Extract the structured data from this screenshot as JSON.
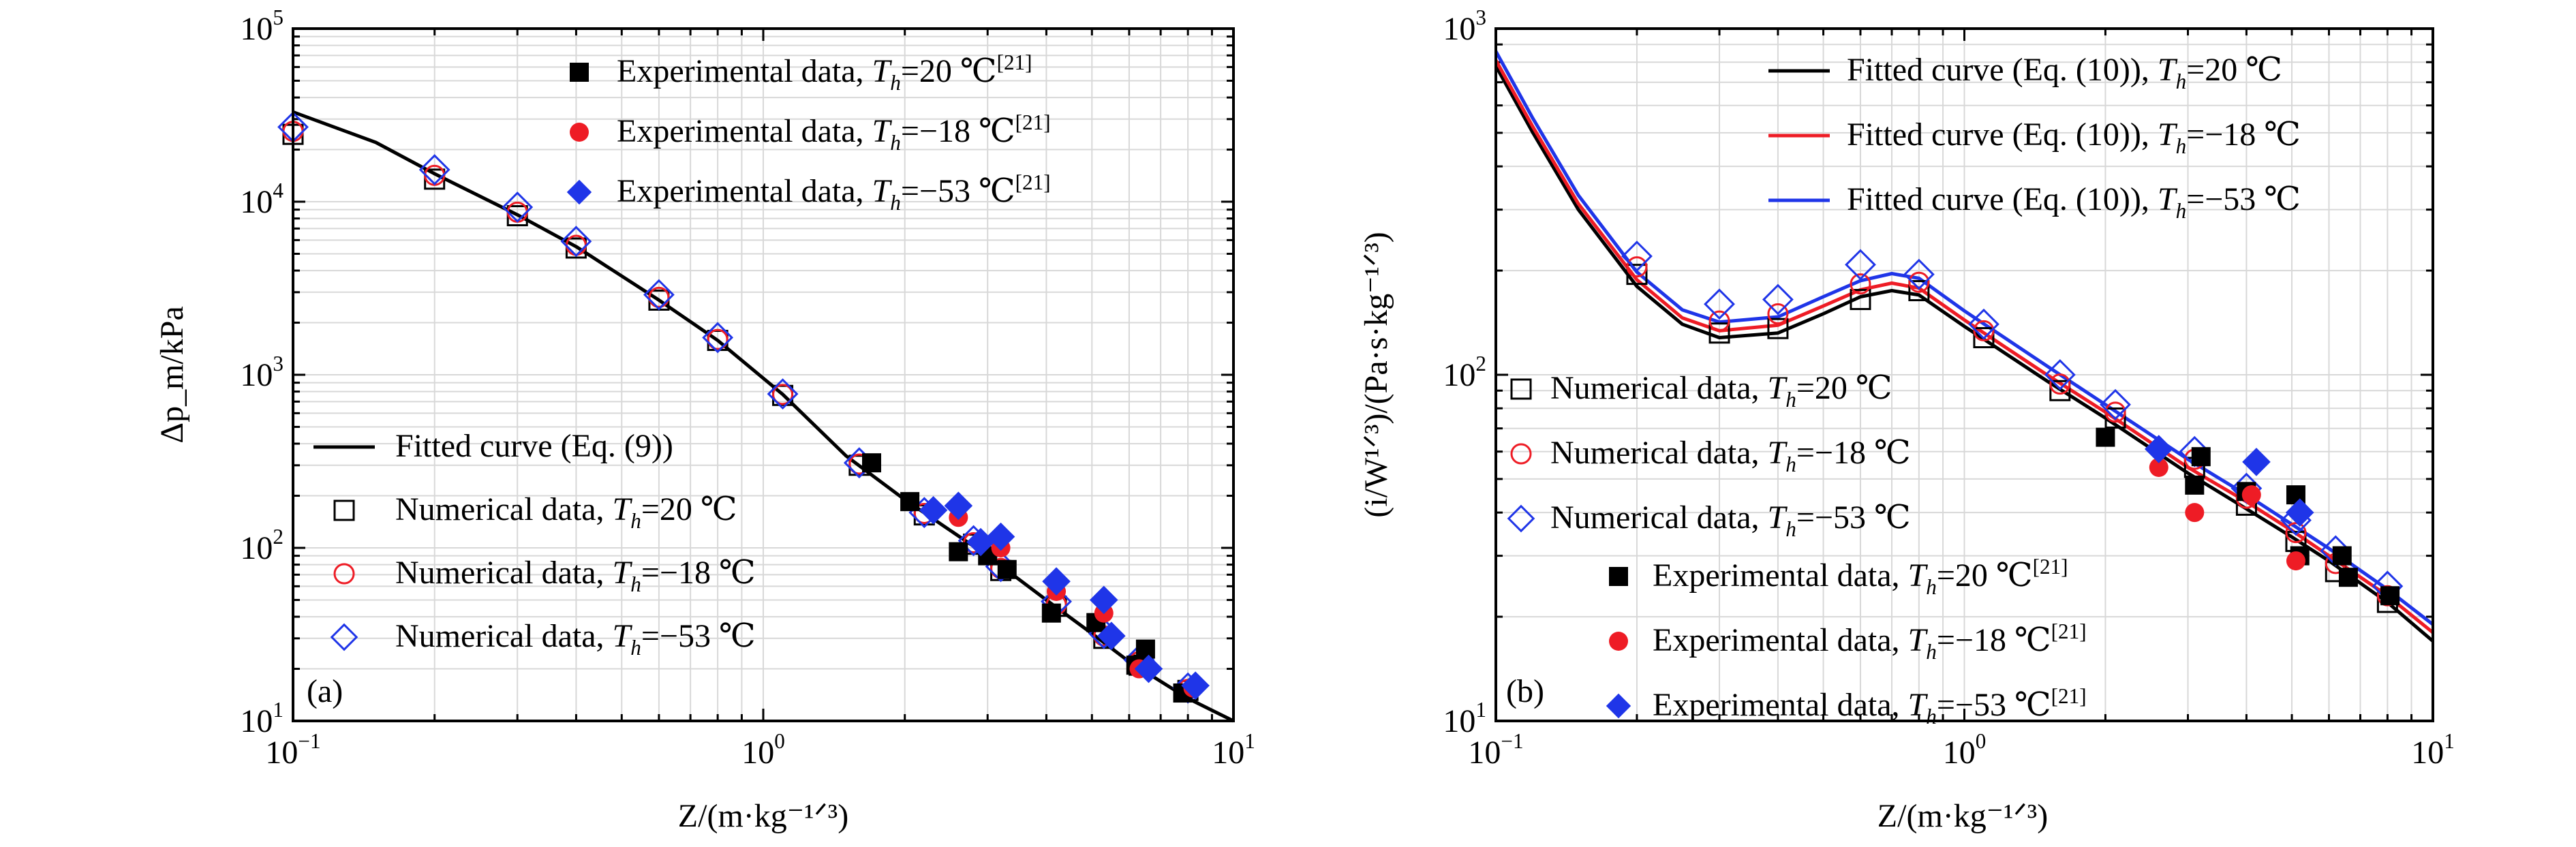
{
  "chart_data": [
    {
      "type": "scatter",
      "panel_label": "(a)",
      "xlabel": "Z/(m·kg⁻¹ᐟ³)",
      "ylabel": "Δp_m/kPa",
      "x_scale": "log",
      "y_scale": "log",
      "xlim": [
        0.1,
        10
      ],
      "ylim": [
        10,
        100000
      ],
      "x_ticks": [
        {
          "value": 0.1,
          "base": "10",
          "exp": "−1"
        },
        {
          "value": 1,
          "base": "10",
          "exp": "0"
        },
        {
          "value": 10,
          "base": "10",
          "exp": "1"
        }
      ],
      "y_ticks": [
        {
          "value": 10,
          "base": "10",
          "exp": "1"
        },
        {
          "value": 100,
          "base": "10",
          "exp": "2"
        },
        {
          "value": 1000,
          "base": "10",
          "exp": "3"
        },
        {
          "value": 10000,
          "base": "10",
          "exp": "4"
        },
        {
          "value": 100000,
          "base": "10",
          "exp": "5"
        }
      ],
      "grid": true,
      "legends": [
        {
          "placement": "top-right",
          "entries": [
            {
              "label": "Experimental data, ",
              "italic": "T",
              "sub": "h",
              "tail": "=20 ℃",
              "sup": "[21]",
              "marker": "square-filled",
              "color": "#000000"
            },
            {
              "label": "Experimental data, ",
              "italic": "T",
              "sub": "h",
              "tail": "=−18 ℃",
              "sup": "[21]",
              "marker": "circle-filled",
              "color": "#ee1c25"
            },
            {
              "label": "Experimental data, ",
              "italic": "T",
              "sub": "h",
              "tail": "=−53 ℃",
              "sup": "[21]",
              "marker": "diamond-filled",
              "color": "#1f35e8"
            }
          ]
        },
        {
          "placement": "bottom-left",
          "entries": [
            {
              "label": "Fitted curve (Eq. (9))",
              "italic": "",
              "sub": "",
              "tail": "",
              "sup": "",
              "marker": "line",
              "color": "#000000"
            },
            {
              "label": "Numerical data, ",
              "italic": "T",
              "sub": "h",
              "tail": "=20 ℃",
              "sup": "",
              "marker": "square-open",
              "color": "#000000"
            },
            {
              "label": "Numerical data, ",
              "italic": "T",
              "sub": "h",
              "tail": "=−18 ℃",
              "sup": "",
              "marker": "circle-open",
              "color": "#ee1c25"
            },
            {
              "label": "Numerical data, ",
              "italic": "T",
              "sub": "h",
              "tail": "=−53 ℃",
              "sup": "",
              "marker": "diamond-open",
              "color": "#1f35e8"
            }
          ]
        }
      ],
      "curves": [
        {
          "name": "Fitted curve (Eq. (9))",
          "color": "#000000",
          "x": [
            0.1,
            0.15,
            0.2,
            0.3,
            0.4,
            0.6,
            0.8,
            1.1,
            1.5,
            2,
            3,
            4,
            5,
            6,
            8,
            10
          ],
          "y": [
            33000,
            22000,
            14500,
            8400,
            5500,
            2700,
            1580,
            770,
            340,
            190,
            90,
            50,
            32,
            22,
            13.5,
            10
          ]
        }
      ],
      "series": [
        {
          "name": "Numerical data, Th=20 ℃",
          "marker": "square-open",
          "color": "#000000",
          "x": [
            0.1,
            0.2,
            0.3,
            0.4,
            0.6,
            0.8,
            1.1,
            1.6,
            2.2,
            2.8,
            3.2,
            4.2,
            5.3,
            6.3,
            8
          ],
          "y": [
            24500,
            13500,
            8300,
            5400,
            2700,
            1580,
            760,
            300,
            155,
            105,
            74,
            46,
            30,
            21,
            15
          ]
        },
        {
          "name": "Numerical data, Th=−18 ℃",
          "marker": "circle-open",
          "color": "#ee1c25",
          "x": [
            0.1,
            0.2,
            0.3,
            0.4,
            0.6,
            0.8,
            1.1,
            1.6,
            2.2,
            2.8,
            3.2,
            4.2,
            5.3,
            6.3,
            8
          ],
          "y": [
            25500,
            14200,
            8700,
            5600,
            2800,
            1600,
            770,
            305,
            158,
            107,
            76,
            47,
            31,
            22,
            15.2
          ]
        },
        {
          "name": "Numerical data, Th=−53 ℃",
          "marker": "diamond-open",
          "color": "#1f35e8",
          "x": [
            0.1,
            0.2,
            0.3,
            0.4,
            0.6,
            0.8,
            1.1,
            1.6,
            2.2,
            2.8,
            3.2,
            4.2,
            5.3,
            6.3,
            8
          ],
          "y": [
            27000,
            15300,
            9300,
            5900,
            2900,
            1640,
            775,
            310,
            160,
            110,
            78,
            49,
            32,
            22.5,
            15.5
          ]
        },
        {
          "name": "Experimental data, Th=20 ℃",
          "marker": "square-filled",
          "color": "#000000",
          "x": [
            1.7,
            2.05,
            2.6,
            3.0,
            3.3,
            4.1,
            5.1,
            6.2,
            6.5,
            7.8
          ],
          "y": [
            310,
            185,
            95,
            90,
            75,
            42,
            37,
            21,
            26,
            14.5
          ]
        },
        {
          "name": "Experimental data, Th=−18 ℃",
          "marker": "circle-filled",
          "color": "#ee1c25",
          "x": [
            2.6,
            3.2,
            4.2,
            5.3,
            6.3,
            8.2
          ],
          "y": [
            150,
            100,
            56,
            42,
            20,
            15.5
          ]
        },
        {
          "name": "Experimental data, Th=−53 ℃",
          "marker": "diamond-filled",
          "color": "#1f35e8",
          "x": [
            2.3,
            2.6,
            2.9,
            3.2,
            4.2,
            5.3,
            5.5,
            6.6,
            8.3
          ],
          "y": [
            165,
            175,
            108,
            116,
            64,
            50,
            31,
            20,
            16
          ]
        }
      ]
    },
    {
      "type": "scatter",
      "panel_label": "(b)",
      "xlabel": "Z/(m·kg⁻¹ᐟ³)",
      "ylabel": "(i/W¹ᐟ³)/(Pa·s·kg⁻¹ᐟ³)",
      "x_scale": "log",
      "y_scale": "log",
      "xlim": [
        0.1,
        10
      ],
      "ylim": [
        10,
        1000
      ],
      "x_ticks": [
        {
          "value": 0.1,
          "base": "10",
          "exp": "−1"
        },
        {
          "value": 1,
          "base": "10",
          "exp": "0"
        },
        {
          "value": 10,
          "base": "10",
          "exp": "1"
        }
      ],
      "y_ticks": [
        {
          "value": 10,
          "base": "10",
          "exp": "1"
        },
        {
          "value": 100,
          "base": "10",
          "exp": "2"
        },
        {
          "value": 1000,
          "base": "10",
          "exp": "3"
        }
      ],
      "grid": true,
      "legends": [
        {
          "placement": "top-right",
          "entries": [
            {
              "label": "Fitted curve (Eq. (10)), ",
              "italic": "T",
              "sub": "h",
              "tail": "=20 ℃",
              "sup": "",
              "marker": "line",
              "color": "#000000"
            },
            {
              "label": "Fitted curve (Eq. (10)), ",
              "italic": "T",
              "sub": "h",
              "tail": "=−18 ℃",
              "sup": "",
              "marker": "line",
              "color": "#ee1c25"
            },
            {
              "label": "Fitted curve (Eq. (10)), ",
              "italic": "T",
              "sub": "h",
              "tail": "=−53 ℃",
              "sup": "",
              "marker": "line",
              "color": "#1f35e8"
            }
          ]
        },
        {
          "placement": "center-left",
          "entries": [
            {
              "label": "Numerical data, ",
              "italic": "T",
              "sub": "h",
              "tail": "=20 ℃",
              "sup": "",
              "marker": "square-open",
              "color": "#000000"
            },
            {
              "label": "Numerical data, ",
              "italic": "T",
              "sub": "h",
              "tail": "=−18 ℃",
              "sup": "",
              "marker": "circle-open",
              "color": "#ee1c25"
            },
            {
              "label": "Numerical data, ",
              "italic": "T",
              "sub": "h",
              "tail": "=−53 ℃",
              "sup": "",
              "marker": "diamond-open",
              "color": "#1f35e8"
            }
          ]
        },
        {
          "placement": "bottom-left",
          "entries": [
            {
              "label": "Experimental data, ",
              "italic": "T",
              "sub": "h",
              "tail": "=20 ℃",
              "sup": "[21]",
              "marker": "square-filled",
              "color": "#000000"
            },
            {
              "label": "Experimental data, ",
              "italic": "T",
              "sub": "h",
              "tail": "=−18 ℃",
              "sup": "[21]",
              "marker": "circle-filled",
              "color": "#ee1c25"
            },
            {
              "label": "Experimental data, ",
              "italic": "T",
              "sub": "h",
              "tail": "=−53 ℃",
              "sup": "[21]",
              "marker": "diamond-filled",
              "color": "#1f35e8"
            }
          ]
        }
      ],
      "curves": [
        {
          "name": "Fitted curve (Eq. (10)), Th=20 ℃",
          "color": "#000000",
          "x": [
            0.1,
            0.12,
            0.15,
            0.2,
            0.25,
            0.3,
            0.4,
            0.5,
            0.6,
            0.7,
            0.8,
            1.0,
            1.5,
            2,
            3,
            4,
            5,
            6,
            8,
            10
          ],
          "y": [
            780,
            500,
            300,
            180,
            140,
            128,
            132,
            150,
            168,
            175,
            170,
            138,
            96,
            75,
            52,
            41,
            34,
            29,
            22,
            17
          ]
        },
        {
          "name": "Fitted curve (Eq. (10)), Th=−18 ℃",
          "color": "#ee1c25",
          "x": [
            0.1,
            0.12,
            0.15,
            0.2,
            0.25,
            0.3,
            0.4,
            0.5,
            0.6,
            0.7,
            0.8,
            1.0,
            1.5,
            2,
            3,
            4,
            5,
            6,
            8,
            10
          ],
          "y": [
            810,
            520,
            312,
            188,
            146,
            134,
            139,
            158,
            176,
            184,
            178,
            144,
            100,
            78,
            54,
            43,
            35.5,
            30,
            23,
            18
          ]
        },
        {
          "name": "Fitted curve (Eq. (10)), Th=−53 ℃",
          "color": "#1f35e8",
          "x": [
            0.1,
            0.12,
            0.15,
            0.2,
            0.25,
            0.3,
            0.4,
            0.5,
            0.6,
            0.7,
            0.8,
            1.0,
            1.5,
            2,
            3,
            4,
            5,
            6,
            8,
            10
          ],
          "y": [
            860,
            550,
            330,
            198,
            154,
            142,
            147,
            168,
            187,
            196,
            190,
            153,
            106,
            82,
            57,
            45,
            37,
            31.5,
            24,
            19
          ]
        }
      ],
      "series": [
        {
          "name": "Numerical data, Th=20 ℃",
          "marker": "square-open",
          "color": "#000000",
          "x": [
            0.2,
            0.3,
            0.4,
            0.6,
            0.8,
            1.1,
            1.6,
            2.1,
            3.1,
            4,
            5.1,
            6.2,
            8
          ],
          "y": [
            195,
            132,
            136,
            165,
            175,
            128,
            90,
            75,
            54,
            42,
            33,
            27,
            22
          ]
        },
        {
          "name": "Numerical data, Th=−18 ℃",
          "marker": "circle-open",
          "color": "#ee1c25",
          "x": [
            0.2,
            0.3,
            0.4,
            0.6,
            0.8,
            1.1,
            1.6,
            2.1,
            3.1,
            4,
            5.1,
            6.2,
            8
          ],
          "y": [
            205,
            143,
            150,
            183,
            185,
            134,
            94,
            78,
            57,
            44,
            35,
            28.5,
            23
          ]
        },
        {
          "name": "Numerical data, Th=−53 ℃",
          "marker": "diamond-open",
          "color": "#1f35e8",
          "x": [
            0.2,
            0.3,
            0.4,
            0.6,
            0.8,
            1.1,
            1.6,
            2.1,
            3.1,
            4,
            5.1,
            6.2,
            8
          ],
          "y": [
            220,
            160,
            165,
            208,
            195,
            140,
            100,
            82,
            60,
            47,
            38,
            31,
            24.5
          ]
        },
        {
          "name": "Experimental data, Th=20 ℃",
          "marker": "square-filled",
          "color": "#000000",
          "x": [
            2.0,
            3.1,
            3.2,
            4.0,
            5.1,
            5.2,
            6.4,
            6.6,
            8.1
          ],
          "y": [
            66,
            48,
            58,
            46,
            45,
            30,
            30,
            26,
            23
          ]
        },
        {
          "name": "Experimental data, Th=−18 ℃",
          "marker": "circle-filled",
          "color": "#ee1c25",
          "x": [
            2.6,
            3.1,
            4.1,
            5.1
          ],
          "y": [
            54,
            40,
            45,
            29
          ]
        },
        {
          "name": "Experimental data, Th=−53 ℃",
          "marker": "diamond-filled",
          "color": "#1f35e8",
          "x": [
            2.6,
            4.2,
            5.2
          ],
          "y": [
            61,
            56,
            40
          ]
        }
      ]
    }
  ]
}
